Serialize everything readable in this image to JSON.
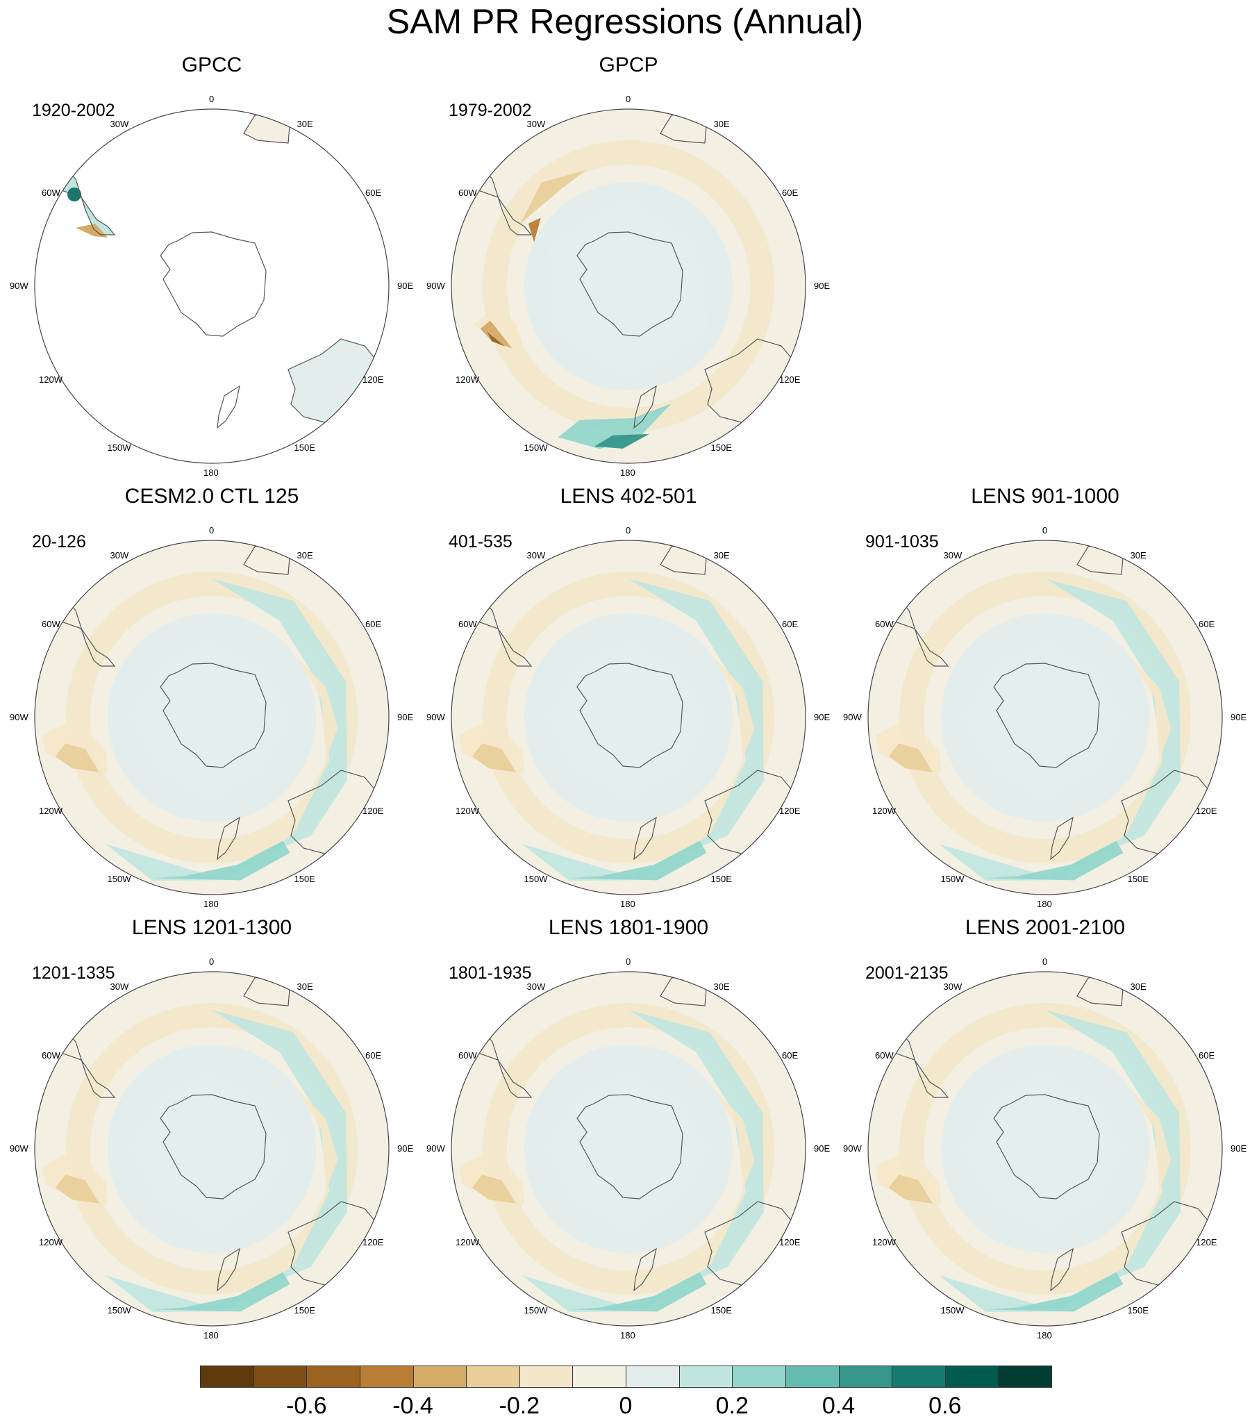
{
  "title": "SAM PR Regressions (Annual)",
  "longitude_labels": [
    "0",
    "30E",
    "60E",
    "90E",
    "120E",
    "150E",
    "180",
    "150W",
    "120W",
    "90W",
    "60W",
    "30W"
  ],
  "panels": [
    {
      "title": "GPCC",
      "period": "1920-2002",
      "field": "land-only"
    },
    {
      "title": "GPCP",
      "period": "1979-2002",
      "field": "ocean-obs"
    },
    null,
    {
      "title": "CESM2.0 CTL 125",
      "period": "20-126",
      "field": "model"
    },
    {
      "title": "LENS 402-501",
      "period": "401-535",
      "field": "model"
    },
    {
      "title": "LENS 901-1000",
      "period": "901-1035",
      "field": "model"
    },
    {
      "title": "LENS 1201-1300",
      "period": "1201-1335",
      "field": "model"
    },
    {
      "title": "LENS 1801-1900",
      "period": "1801-1935",
      "field": "model"
    },
    {
      "title": "LENS 2001-2100",
      "period": "2001-2135",
      "field": "model"
    }
  ],
  "colorbar": {
    "levels": [
      -0.7,
      -0.6,
      -0.5,
      -0.4,
      -0.3,
      -0.2,
      -0.1,
      0,
      0.1,
      0.2,
      0.3,
      0.4,
      0.5,
      0.6,
      0.7
    ],
    "colors": [
      "#5e3a0d",
      "#7d4e14",
      "#9b6220",
      "#ba7d34",
      "#d4aa66",
      "#e8cf99",
      "#f4e7c9",
      "#f3efe3",
      "#e3eeec",
      "#c1e6df",
      "#94d6cb",
      "#65bcb1",
      "#36968b",
      "#167a70",
      "#025b4f",
      "#013d33"
    ],
    "tick_labels": [
      "-0.6",
      "-0.4",
      "-0.2",
      "0",
      "0.2",
      "0.4",
      "0.6"
    ],
    "tick_values": [
      -0.6,
      -0.4,
      -0.2,
      0,
      0.2,
      0.4,
      0.6
    ]
  }
}
